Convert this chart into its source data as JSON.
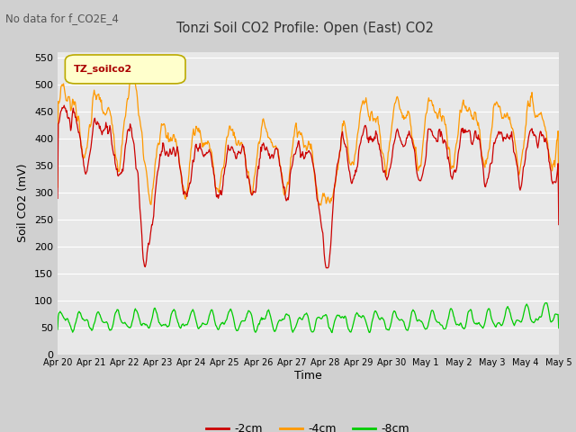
{
  "title": "Tonzi Soil CO2 Profile: Open (East) CO2",
  "subtitle": "No data for f_CO2E_4",
  "ylabel": "Soil CO2 (mV)",
  "xlabel": "Time",
  "legend_label": "TZ_soilco2",
  "ylim": [
    0,
    560
  ],
  "yticks": [
    0,
    50,
    100,
    150,
    200,
    250,
    300,
    350,
    400,
    450,
    500,
    550
  ],
  "color_2cm": "#cc0000",
  "color_4cm": "#ff9900",
  "color_8cm": "#00cc00",
  "fig_bg_color": "#d0d0d0",
  "plot_bg_color": "#e8e8e8",
  "legend_items": [
    "-2cm",
    "-4cm",
    "-8cm"
  ],
  "tick_labels": [
    "Apr 20",
    "Apr 21",
    "Apr 22",
    "Apr 23",
    "Apr 24",
    "Apr 25",
    "Apr 26",
    "Apr 27",
    "Apr 28",
    "Apr 29",
    "Apr 30",
    "May 1",
    "May 2",
    "May 3",
    "May 4",
    "May 5"
  ]
}
